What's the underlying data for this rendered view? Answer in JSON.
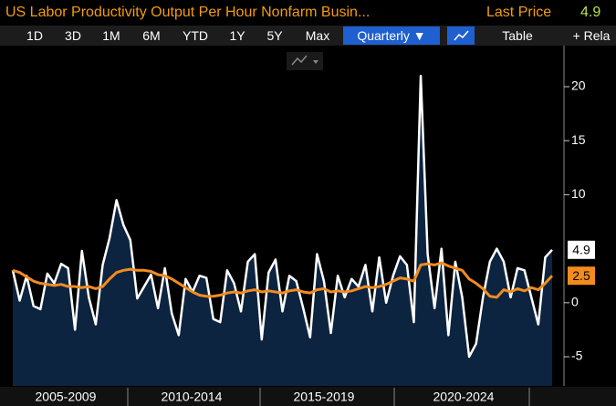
{
  "header": {
    "title": "US Labor Productivity Output Per Hour Nonfarm Busin...",
    "last_price_label": "Last Price",
    "last_price": "4.9"
  },
  "toolbar": {
    "buttons": [
      "1D",
      "3D",
      "1M",
      "6M",
      "YTD",
      "1Y",
      "5Y",
      "Max",
      "Quarterly ▼",
      "Table",
      "+ Rela"
    ]
  },
  "chart_data": {
    "type": "line",
    "series": [
      {
        "color": "#ffffff",
        "values": [
          3.0,
          0.2,
          2.5,
          -0.3,
          -0.6,
          2.7,
          1.8,
          3.6,
          3.2,
          -2.5,
          4.8,
          0.5,
          -2.0,
          3.5,
          6.0,
          9.5,
          7.2,
          5.8,
          0.4,
          1.5,
          2.6,
          -0.5,
          3.2,
          -1.0,
          -3.0,
          2.2,
          1.0,
          2.5,
          2.3,
          -1.5,
          -1.8,
          3.0,
          1.8,
          -0.8,
          3.8,
          4.5,
          -3.4,
          2.8,
          4.0,
          -0.8,
          2.5,
          2.0,
          -0.5,
          -3.2,
          4.5,
          2.0,
          -2.8,
          2.5,
          0.5,
          2.2,
          1.5,
          3.5,
          -0.8,
          4.2,
          0.0,
          2.5,
          4.3,
          3.5,
          -1.8,
          21.0,
          4.5,
          -0.5,
          5.0,
          -3.0,
          3.8,
          0.5,
          -5.0,
          -3.8,
          0.5,
          3.8,
          5.0,
          3.8,
          0.5,
          3.2,
          3.0,
          0.5,
          -2.0,
          4.2,
          4.9
        ]
      },
      {
        "color": "#f28c1e",
        "values": [
          3.0,
          2.8,
          2.4,
          2.0,
          1.8,
          1.7,
          1.6,
          1.7,
          1.5,
          1.5,
          1.4,
          1.5,
          1.3,
          1.5,
          2.2,
          2.8,
          3.0,
          3.1,
          3.0,
          3.0,
          2.9,
          2.6,
          2.5,
          2.2,
          1.8,
          1.4,
          1.0,
          0.7,
          0.6,
          0.6,
          0.7,
          0.9,
          1.0,
          0.9,
          1.1,
          1.2,
          1.0,
          1.1,
          1.0,
          0.9,
          1.1,
          1.2,
          1.0,
          0.9,
          1.2,
          1.3,
          1.0,
          1.1,
          1.0,
          1.1,
          1.3,
          1.5,
          1.4,
          1.5,
          1.7,
          2.0,
          2.3,
          2.2,
          2.0,
          3.5,
          3.6,
          3.5,
          3.7,
          3.4,
          3.2,
          3.0,
          2.2,
          1.8,
          1.3,
          0.6,
          0.5,
          1.2,
          1.0,
          1.3,
          1.1,
          1.4,
          1.2,
          1.8,
          2.5
        ]
      }
    ],
    "period_labels": [
      "2005-2009",
      "2010-2014",
      "2015-2019",
      "2020-2024"
    ],
    "ylim": [
      -7.7,
      23.8
    ],
    "yticks": [
      -5,
      0,
      10,
      15,
      20
    ],
    "area_color": "#0c2440"
  }
}
